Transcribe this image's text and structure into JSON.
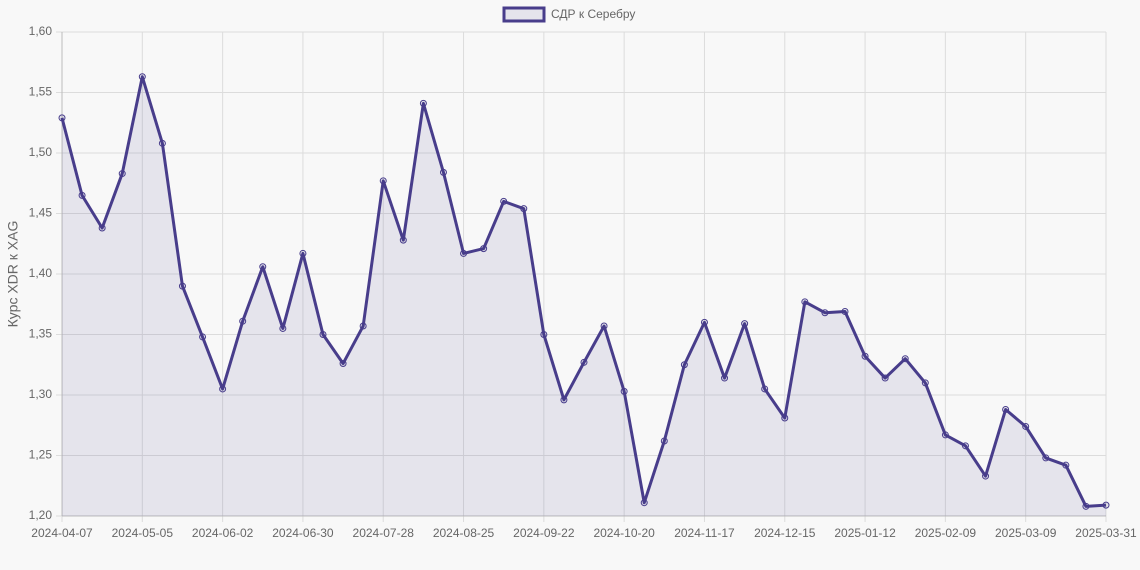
{
  "chart_data": {
    "type": "line",
    "y_label": "Курс XDR к XAG",
    "categories": [
      "2024-04-07",
      null,
      null,
      null,
      "2024-05-05",
      null,
      null,
      null,
      "2024-06-02",
      null,
      null,
      null,
      "2024-06-30",
      null,
      null,
      null,
      "2024-07-28",
      null,
      null,
      null,
      "2024-08-25",
      null,
      null,
      null,
      "2024-09-22",
      null,
      null,
      null,
      "2024-10-20",
      null,
      null,
      null,
      "2024-11-17",
      null,
      null,
      null,
      "2024-12-15",
      null,
      null,
      null,
      "2025-01-12",
      null,
      null,
      null,
      "2025-02-09",
      null,
      null,
      null,
      "2025-03-09",
      null,
      null,
      null,
      "2025-03-31"
    ],
    "series": [
      {
        "name": "СДР к Серебру",
        "color": "#483d8b",
        "fill": "rgba(72,61,139,0.1)",
        "values": [
          1.529,
          1.465,
          1.438,
          1.483,
          1.563,
          1.508,
          1.39,
          1.348,
          1.305,
          1.361,
          1.406,
          1.355,
          1.417,
          1.35,
          1.326,
          1.357,
          1.477,
          1.428,
          1.541,
          1.484,
          1.417,
          1.421,
          1.46,
          1.454,
          1.35,
          1.296,
          1.327,
          1.357,
          1.303,
          1.211,
          1.262,
          1.325,
          1.36,
          1.314,
          1.359,
          1.305,
          1.281,
          1.377,
          1.368,
          1.369,
          1.332,
          1.314,
          1.33,
          1.31,
          1.267,
          1.258,
          1.233,
          1.288,
          1.274,
          1.248,
          1.242,
          1.208,
          1.209
        ]
      }
    ],
    "ylim": [
      1.2,
      1.6
    ],
    "yticks": [
      {
        "value": 1.2,
        "label": "1,20"
      },
      {
        "value": 1.25,
        "label": "1,25"
      },
      {
        "value": 1.3,
        "label": "1,30"
      },
      {
        "value": 1.35,
        "label": "1,35"
      },
      {
        "value": 1.4,
        "label": "1,40"
      },
      {
        "value": 1.45,
        "label": "1,45"
      },
      {
        "value": 1.5,
        "label": "1,50"
      },
      {
        "value": 1.55,
        "label": "1,55"
      },
      {
        "value": 1.6,
        "label": "1,60"
      }
    ],
    "grid": true,
    "legend": "top"
  }
}
